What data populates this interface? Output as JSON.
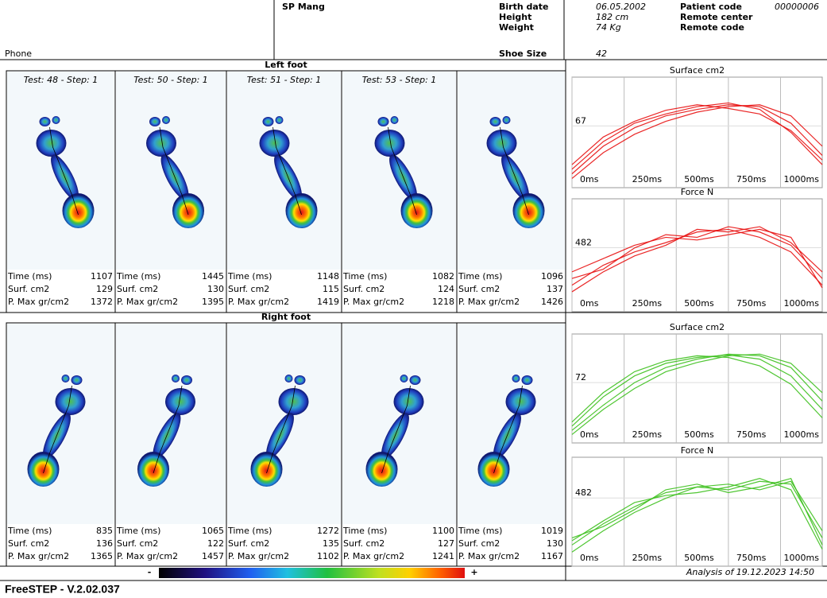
{
  "header": {
    "phone": "Phone",
    "name": "SP Mang",
    "fields": [
      {
        "label": "Birth date",
        "value": "06.05.2002"
      },
      {
        "label": "Height",
        "value": "182 cm"
      },
      {
        "label": "Weight",
        "value": "74 Kg"
      },
      {
        "label": "Shoe Size",
        "value": "42"
      }
    ],
    "codes": [
      {
        "label": "Patient code",
        "value": "00000006"
      },
      {
        "label": "Remote center"
      },
      {
        "label": "Remote code"
      }
    ]
  },
  "feet": [
    {
      "title": "Left foot",
      "metric_labels": [
        "Time (ms)",
        "Surf. cm2",
        "P. Max gr/cm2"
      ],
      "steps": [
        {
          "label": "Test: 48 - Step: 1",
          "values": [
            1107,
            129,
            1372
          ]
        },
        {
          "label": "Test: 50 - Step: 1",
          "values": [
            1445,
            130,
            1395
          ]
        },
        {
          "label": "Test: 51 - Step: 1",
          "values": [
            1148,
            115,
            1419
          ]
        },
        {
          "label": "Test: 53 - Step: 1",
          "values": [
            1082,
            124,
            1218
          ]
        },
        {
          "values": [
            1096,
            137,
            1426
          ]
        }
      ]
    },
    {
      "title": "Right foot",
      "metric_labels": [
        "Time (ms)",
        "Surf. cm2",
        "P. Max gr/cm2"
      ],
      "steps": [
        {
          "values": [
            835,
            136,
            1365
          ]
        },
        {
          "values": [
            1065,
            122,
            1457
          ]
        },
        {
          "values": [
            1272,
            135,
            1102
          ]
        },
        {
          "values": [
            1100,
            127,
            1241
          ]
        },
        {
          "values": [
            1019,
            130,
            1167
          ]
        }
      ]
    }
  ],
  "chart_data": [
    {
      "type": "line",
      "title": "Surface cm2",
      "x": [
        0,
        150,
        300,
        450,
        600,
        750,
        900,
        1050,
        1200
      ],
      "xlim": [
        0,
        1200
      ],
      "xticks": [
        {
          "value": 0,
          "label": "0ms"
        },
        {
          "value": 250,
          "label": "250ms"
        },
        {
          "value": 500,
          "label": "500ms"
        },
        {
          "value": 750,
          "label": "750ms"
        },
        {
          "value": 1000,
          "label": "1000ms"
        }
      ],
      "ylim": [
        0,
        120
      ],
      "yticks": [
        67
      ],
      "series": [
        {
          "color": "#e81010",
          "values": [
            15,
            45,
            65,
            78,
            85,
            90,
            88,
            70,
            35
          ]
        },
        {
          "color": "#e81010",
          "values": [
            20,
            50,
            70,
            80,
            88,
            92,
            85,
            60,
            25
          ]
        },
        {
          "color": "#e81010",
          "values": [
            10,
            38,
            58,
            72,
            82,
            88,
            90,
            78,
            45
          ]
        },
        {
          "color": "#e81010",
          "values": [
            25,
            55,
            72,
            84,
            90,
            86,
            80,
            62,
            30
          ]
        }
      ]
    },
    {
      "type": "line",
      "title": "Force N",
      "x": [
        0,
        150,
        300,
        450,
        600,
        750,
        900,
        1050,
        1200
      ],
      "xlim": [
        0,
        1200
      ],
      "xticks": [
        {
          "value": 0,
          "label": "0ms"
        },
        {
          "value": 250,
          "label": "250ms"
        },
        {
          "value": 500,
          "label": "500ms"
        },
        {
          "value": 750,
          "label": "750ms"
        },
        {
          "value": 1000,
          "label": "1000ms"
        }
      ],
      "ylim": [
        0,
        850
      ],
      "yticks": [
        482
      ],
      "series": [
        {
          "color": "#e81010",
          "values": [
            200,
            350,
            450,
            520,
            600,
            620,
            560,
            450,
            200
          ]
        },
        {
          "color": "#e81010",
          "values": [
            250,
            320,
            480,
            580,
            560,
            640,
            600,
            500,
            250
          ]
        },
        {
          "color": "#e81010",
          "values": [
            150,
            300,
            420,
            500,
            620,
            600,
            640,
            520,
            300
          ]
        },
        {
          "color": "#e81010",
          "values": [
            300,
            400,
            500,
            560,
            540,
            580,
            620,
            560,
            180
          ]
        }
      ]
    },
    {
      "type": "line",
      "title": "Surface cm2",
      "x": [
        0,
        150,
        300,
        450,
        600,
        750,
        900,
        1050,
        1200
      ],
      "xlim": [
        0,
        1200
      ],
      "xticks": [
        {
          "value": 0,
          "label": "0ms"
        },
        {
          "value": 250,
          "label": "250ms"
        },
        {
          "value": 500,
          "label": "500ms"
        },
        {
          "value": 750,
          "label": "750ms"
        },
        {
          "value": 1000,
          "label": "1000ms"
        }
      ],
      "ylim": [
        0,
        130
      ],
      "yticks": [
        72
      ],
      "series": [
        {
          "color": "#3cc01c",
          "values": [
            20,
            55,
            80,
            95,
            102,
            105,
            100,
            80,
            40
          ]
        },
        {
          "color": "#3cc01c",
          "values": [
            15,
            45,
            72,
            90,
            100,
            106,
            104,
            90,
            50
          ]
        },
        {
          "color": "#3cc01c",
          "values": [
            25,
            60,
            85,
            98,
            104,
            102,
            92,
            70,
            30
          ]
        },
        {
          "color": "#3cc01c",
          "values": [
            10,
            40,
            65,
            85,
            96,
            104,
            106,
            95,
            60
          ]
        }
      ]
    },
    {
      "type": "line",
      "title": "Force N",
      "x": [
        0,
        150,
        300,
        450,
        600,
        750,
        900,
        1050,
        1200
      ],
      "xlim": [
        0,
        1200
      ],
      "xticks": [
        {
          "value": 0,
          "label": "0ms"
        },
        {
          "value": 250,
          "label": "250ms"
        },
        {
          "value": 500,
          "label": "500ms"
        },
        {
          "value": 750,
          "label": "750ms"
        },
        {
          "value": 1000,
          "label": "1000ms"
        }
      ],
      "ylim": [
        0,
        770
      ],
      "yticks": [
        482
      ],
      "series": [
        {
          "color": "#3cc01c",
          "values": [
            150,
            300,
            420,
            520,
            560,
            540,
            600,
            580,
            200
          ]
        },
        {
          "color": "#3cc01c",
          "values": [
            200,
            280,
            400,
            540,
            580,
            520,
            560,
            620,
            150
          ]
        },
        {
          "color": "#3cc01c",
          "values": [
            100,
            250,
            380,
            480,
            560,
            580,
            540,
            600,
            250
          ]
        },
        {
          "color": "#3cc01c",
          "values": [
            180,
            320,
            450,
            500,
            520,
            560,
            620,
            540,
            120
          ]
        }
      ]
    }
  ],
  "footer": {
    "scale_min": "-",
    "scale_max": "+",
    "analysis": "Analysis of 19.12.2023 14:50",
    "version": "FreeSTEP - V.2.02.037"
  }
}
